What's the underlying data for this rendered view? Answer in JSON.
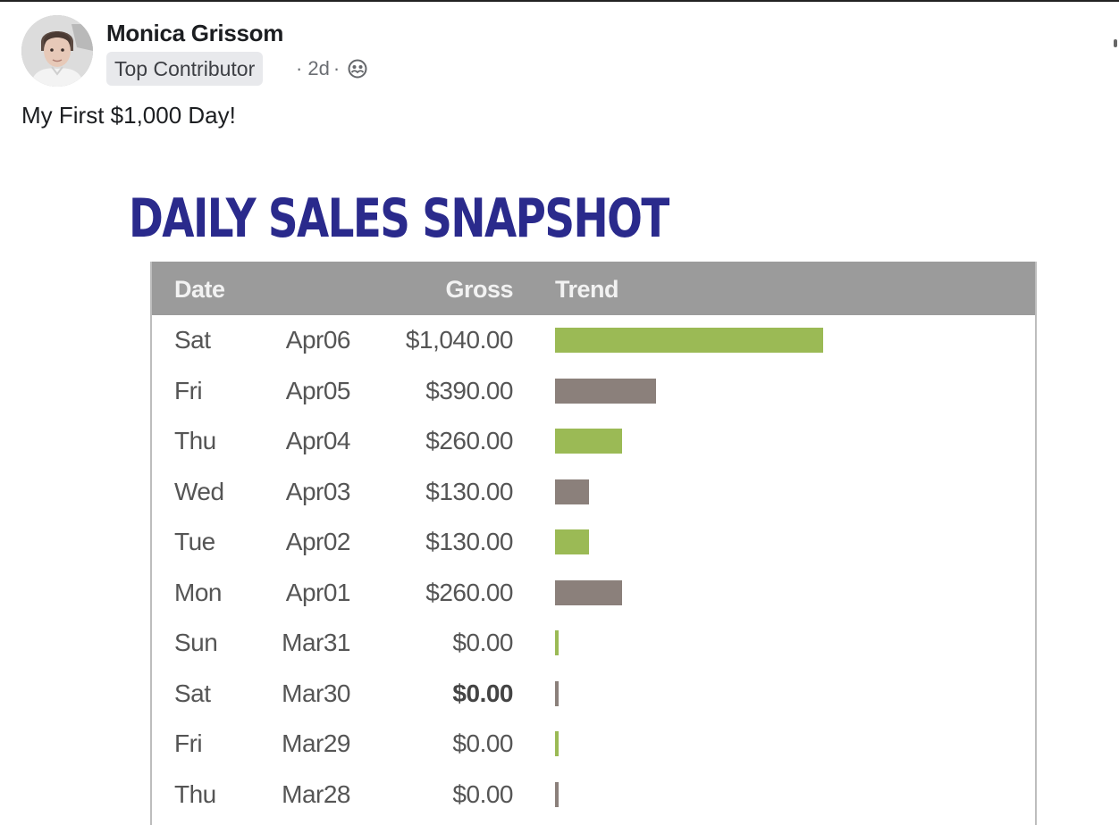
{
  "post": {
    "author": "Monica Grissom",
    "badge": "Top Contributor",
    "separator": "·",
    "time": "2d",
    "separator2": "·",
    "audience_icon": "group-icon",
    "text": "My First $1,000 Day!"
  },
  "snapshot": {
    "title": "DAILY SALES SNAPSHOT",
    "headers": {
      "date": "Date",
      "gross": "Gross",
      "trend": "Trend"
    },
    "colors": {
      "title": "#2a2a8c",
      "header_bg": "#9b9b9b",
      "green": "#9bba55",
      "gray": "#8b807b"
    },
    "rows": [
      {
        "day": "Sat",
        "date": "Apr06",
        "gross": "$1,040.00",
        "value": 1040,
        "bar_color": "green",
        "bold": false
      },
      {
        "day": "Fri",
        "date": "Apr05",
        "gross": "$390.00",
        "value": 390,
        "bar_color": "gray",
        "bold": false
      },
      {
        "day": "Thu",
        "date": "Apr04",
        "gross": "$260.00",
        "value": 260,
        "bar_color": "green",
        "bold": false
      },
      {
        "day": "Wed",
        "date": "Apr03",
        "gross": "$130.00",
        "value": 130,
        "bar_color": "gray",
        "bold": false
      },
      {
        "day": "Tue",
        "date": "Apr02",
        "gross": "$130.00",
        "value": 130,
        "bar_color": "green",
        "bold": false
      },
      {
        "day": "Mon",
        "date": "Apr01",
        "gross": "$260.00",
        "value": 260,
        "bar_color": "gray",
        "bold": false
      },
      {
        "day": "Sun",
        "date": "Mar31",
        "gross": "$0.00",
        "value": 0,
        "bar_color": "green",
        "bold": false
      },
      {
        "day": "Sat",
        "date": "Mar30",
        "gross": "$0.00",
        "value": 0,
        "bar_color": "gray",
        "bold": true
      },
      {
        "day": "Fri",
        "date": "Mar29",
        "gross": "$0.00",
        "value": 0,
        "bar_color": "green",
        "bold": false
      },
      {
        "day": "Thu",
        "date": "Mar28",
        "gross": "$0.00",
        "value": 0,
        "bar_color": "gray",
        "bold": false
      }
    ]
  }
}
